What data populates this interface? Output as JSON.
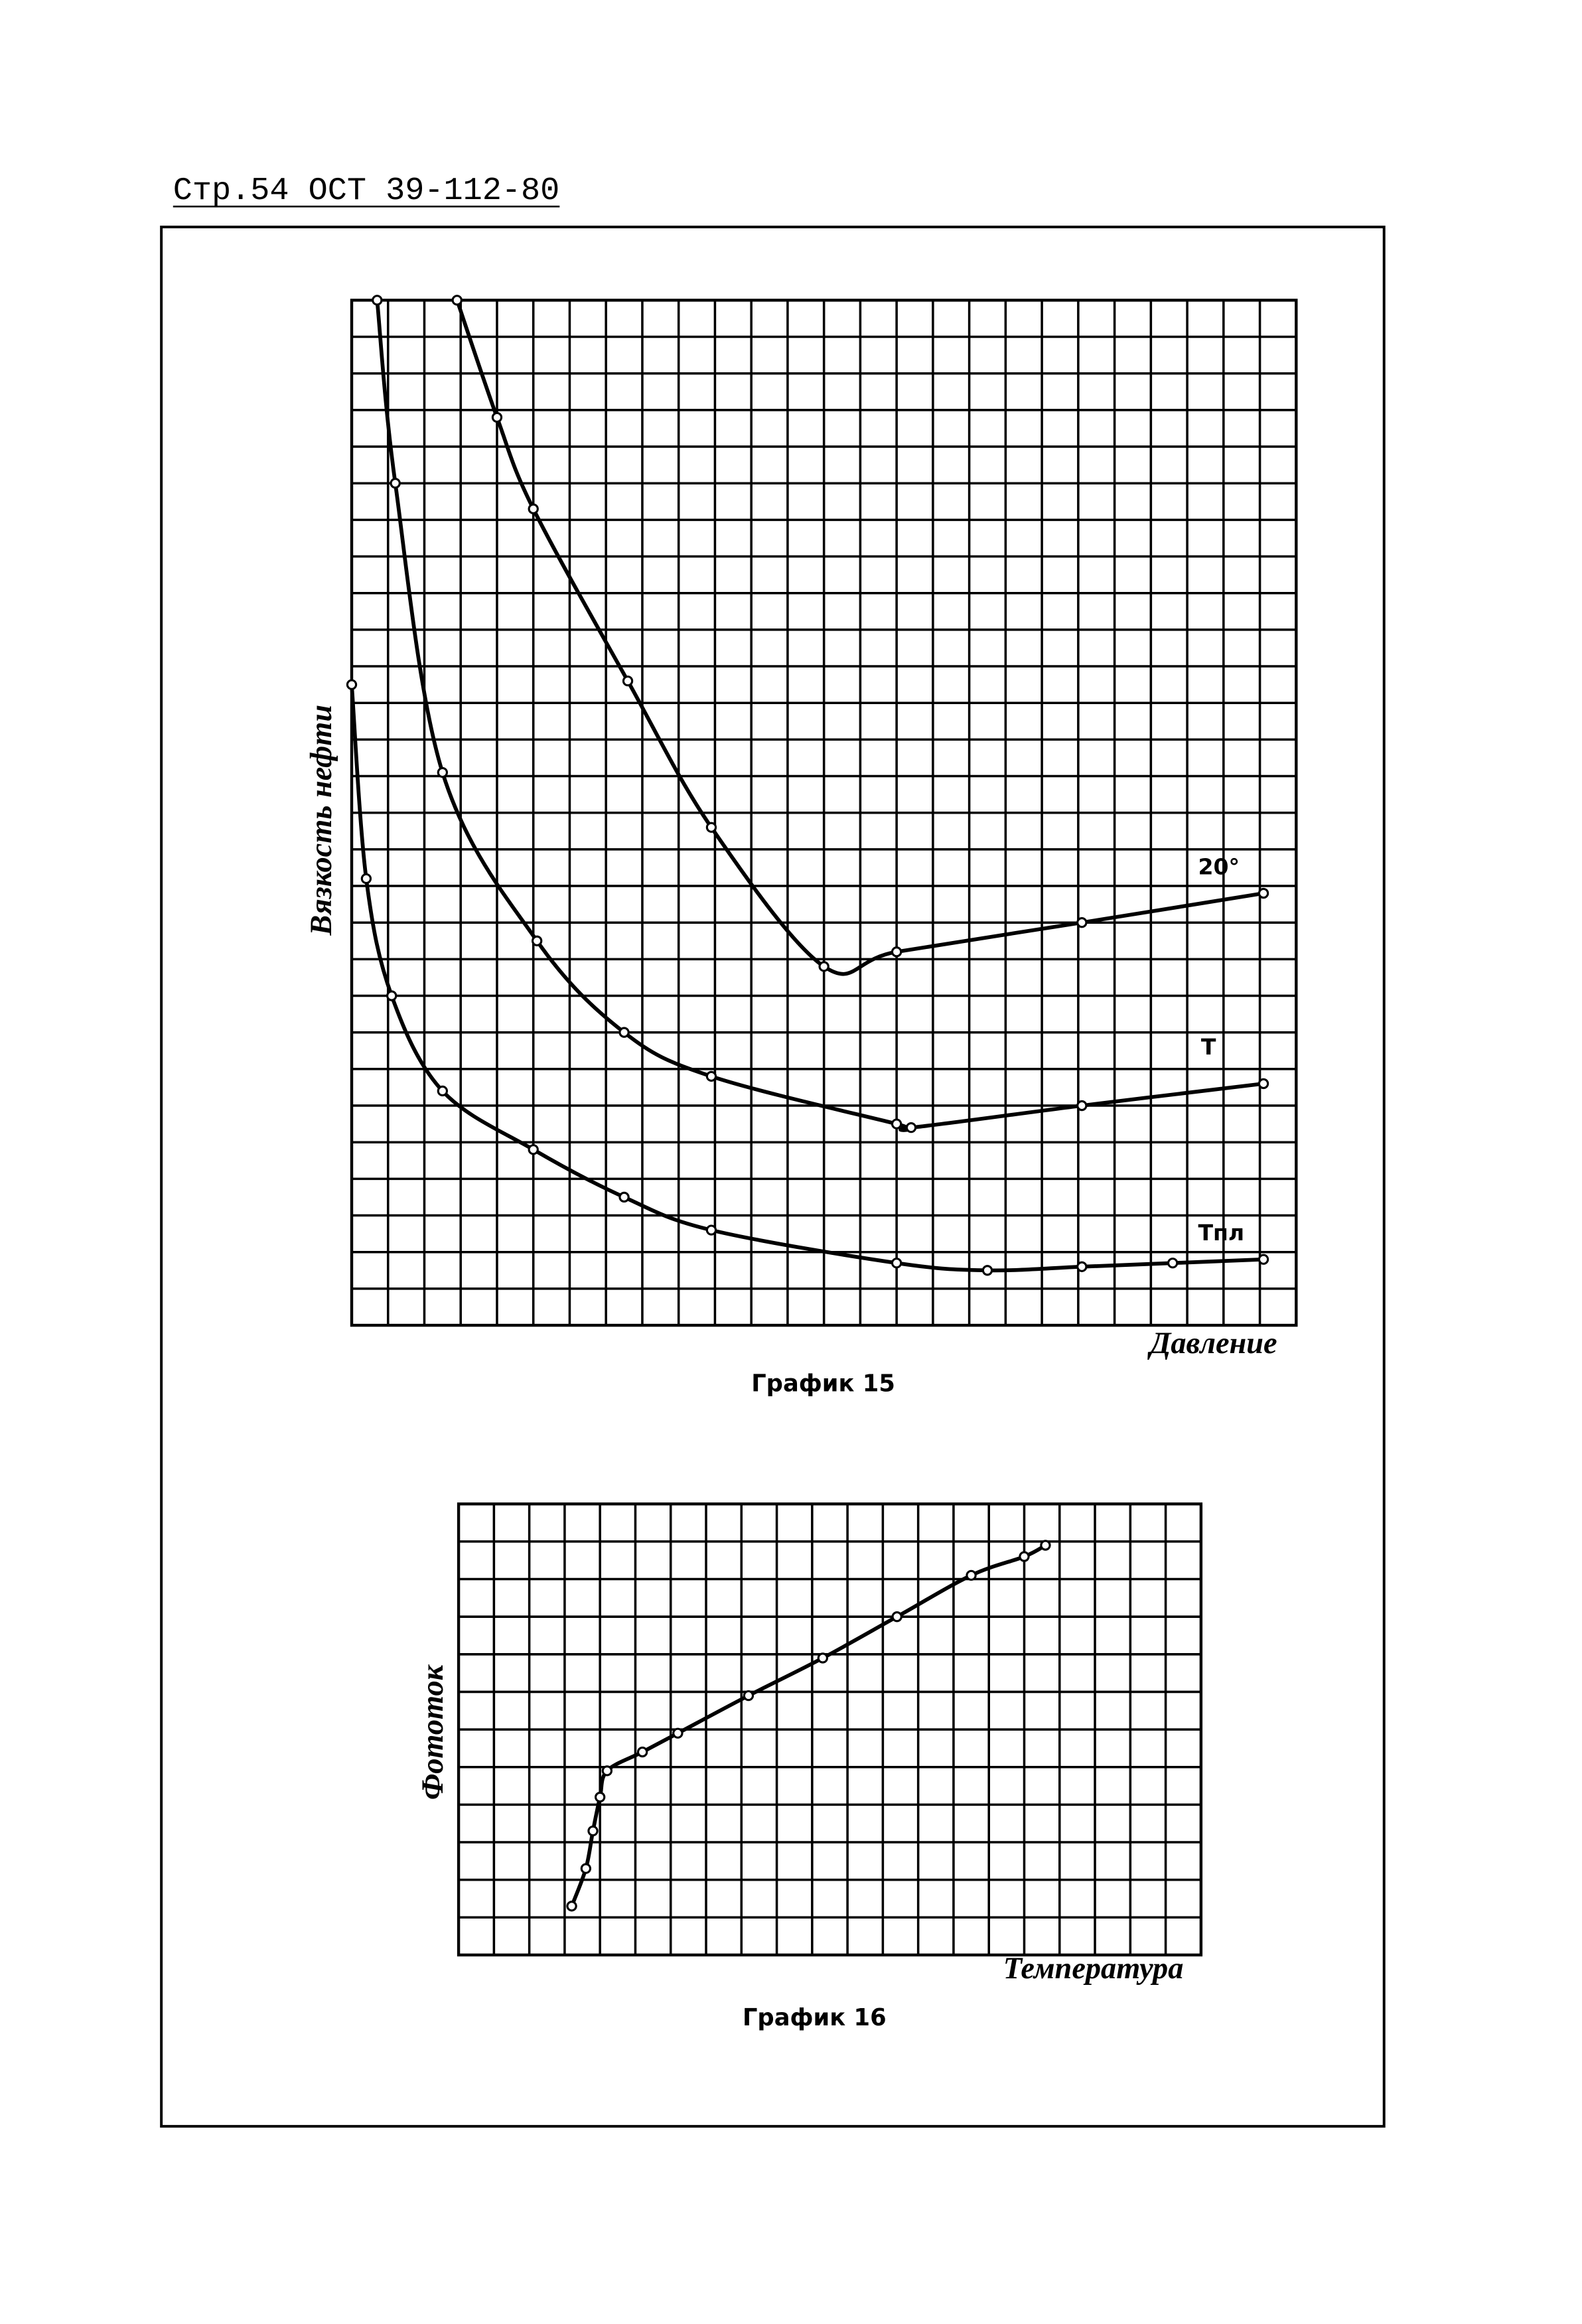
{
  "header": "Стр.54 ОСТ 39-112-80",
  "chart_data": [
    {
      "type": "line",
      "title": "График 15",
      "x_label": "Давление",
      "y_label": "Вязкость нефти",
      "xlim": [
        0,
        26
      ],
      "ylim": [
        0,
        28
      ],
      "grid": true,
      "series": [
        {
          "name": "20°",
          "color": "#000000",
          "x": [
            2.9,
            4.0,
            5.0,
            7.6,
            9.9,
            13.0,
            15.0,
            20.1,
            25.1
          ],
          "values": [
            28.0,
            24.8,
            22.3,
            17.6,
            13.6,
            9.8,
            10.2,
            11.0,
            11.8
          ]
        },
        {
          "name": "Т",
          "color": "#000000",
          "x": [
            0.7,
            1.2,
            2.5,
            5.1,
            7.5,
            9.9,
            15.0,
            15.4,
            20.1,
            25.1
          ],
          "values": [
            28.0,
            23.0,
            15.1,
            10.5,
            8.0,
            6.8,
            5.5,
            5.4,
            6.0,
            6.6
          ]
        },
        {
          "name": "Тпл",
          "color": "#000000",
          "x": [
            0.0,
            0.4,
            1.1,
            2.5,
            5.0,
            7.5,
            9.9,
            15.0,
            17.5,
            20.1,
            22.6,
            25.1
          ],
          "values": [
            17.5,
            12.2,
            9.0,
            6.4,
            4.8,
            3.5,
            2.6,
            1.7,
            1.5,
            1.6,
            1.7,
            1.8
          ]
        }
      ]
    },
    {
      "type": "line",
      "title": "График 16",
      "x_label": "Температура",
      "y_label": "Фототок",
      "xlim": [
        0,
        21
      ],
      "ylim": [
        0,
        12
      ],
      "grid": true,
      "series": [
        {
          "name": null,
          "color": "#000000",
          "x": [
            3.2,
            3.6,
            3.8,
            4.0,
            4.2,
            5.2,
            6.2,
            8.2,
            10.3,
            12.4,
            14.5,
            16.0,
            16.6
          ],
          "values": [
            1.3,
            2.3,
            3.3,
            4.2,
            4.9,
            5.4,
            5.9,
            6.9,
            7.9,
            9.0,
            10.1,
            10.6,
            10.9
          ]
        }
      ]
    }
  ]
}
